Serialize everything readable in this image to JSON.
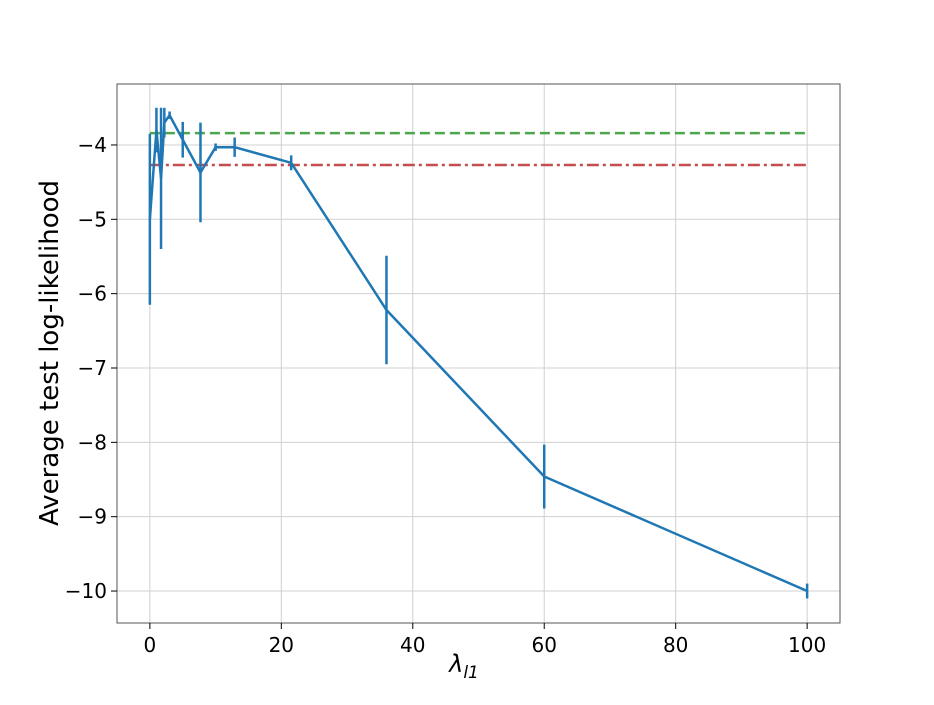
{
  "chart_data": {
    "type": "errorbar-line",
    "xlabel": "λ",
    "xlabel_subscript": "l1",
    "ylabel": "Average test log-likelihood",
    "xlim": [
      -5,
      105
    ],
    "xticks": [
      0,
      20,
      40,
      60,
      80,
      100
    ],
    "ylim": [
      -10.43,
      -3.18
    ],
    "yticks": [
      {
        "value": -4,
        "label": "−4"
      },
      {
        "value": -5,
        "label": "−5"
      },
      {
        "value": -6,
        "label": "−6"
      },
      {
        "value": -7,
        "label": "−7"
      },
      {
        "value": -8,
        "label": "−8"
      },
      {
        "value": -9,
        "label": "−9"
      },
      {
        "value": -10,
        "label": "−10"
      }
    ],
    "grid": true,
    "x": [
      0,
      1,
      1.7,
      2.2,
      3,
      5,
      7.7,
      10,
      12.9,
      21.5,
      36,
      60,
      100
    ],
    "series": [
      {
        "color": "#1f77b4",
        "values": [
          -5.0,
          -3.8,
          -4.45,
          -3.7,
          -3.6,
          -3.93,
          -4.37,
          -4.03,
          -4.03,
          -4.24,
          -6.22,
          -8.46,
          -10.0
        ],
        "errors": [
          1.15,
          0.3,
          0.95,
          0.2,
          0.05,
          0.24,
          0.67,
          0.05,
          0.13,
          0.1,
          0.73,
          0.43,
          0.1
        ]
      }
    ],
    "reference_lines": [
      {
        "y": -3.84,
        "color": "#4ca64c",
        "dash": "10 5"
      },
      {
        "y": -4.27,
        "color": "#c44e4e",
        "dash": "12 4 3 4"
      }
    ]
  }
}
